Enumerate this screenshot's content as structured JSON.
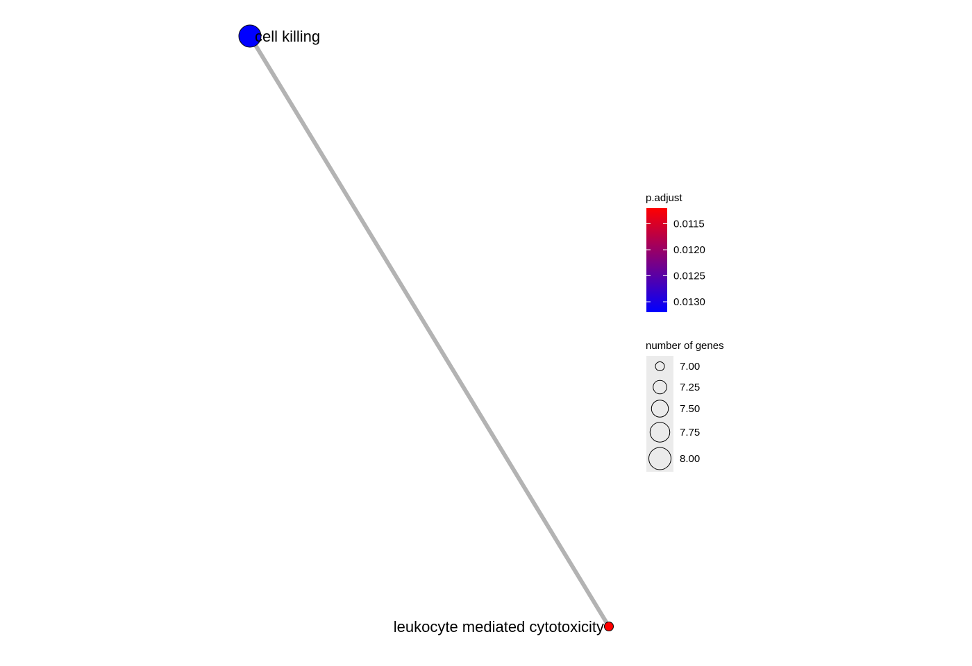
{
  "network": {
    "nodes": [
      {
        "id": "cell-killing",
        "label": "cell killing",
        "p_adjust": 0.0132,
        "gene_count": 8,
        "label_side": "right"
      },
      {
        "id": "leukocyte-mediated-cytotoxicity",
        "label": "leukocyte mediated cytotoxicity",
        "p_adjust": 0.0112,
        "gene_count": 7,
        "label_side": "left"
      }
    ],
    "edges": [
      {
        "source": "cell-killing",
        "target": "leukocyte-mediated-cytotoxicity"
      }
    ],
    "edge_color": "#b3b3b3"
  },
  "legend": {
    "color": {
      "title": "p.adjust",
      "domain": [
        0.0132,
        0.0112
      ],
      "low_color": "#0000ff",
      "high_color": "#ff0000",
      "ticks": [
        {
          "value": 0.0115,
          "label": "0.0115"
        },
        {
          "value": 0.012,
          "label": "0.0120"
        },
        {
          "value": 0.0125,
          "label": "0.0125"
        },
        {
          "value": 0.013,
          "label": "0.0130"
        }
      ]
    },
    "size": {
      "title": "number of genes",
      "min_value": 7,
      "max_value": 8,
      "items": [
        {
          "value": 7.0,
          "label": "7.00"
        },
        {
          "value": 7.25,
          "label": "7.25"
        },
        {
          "value": 7.5,
          "label": "7.50"
        },
        {
          "value": 7.75,
          "label": "7.75"
        },
        {
          "value": 8.0,
          "label": "8.00"
        }
      ]
    }
  }
}
